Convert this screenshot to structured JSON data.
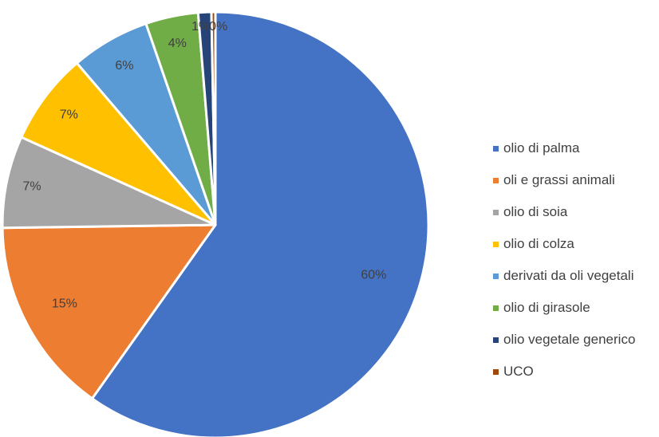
{
  "chart_data": {
    "type": "pie",
    "title": "",
    "legend_position": "right",
    "slices": [
      {
        "label": "olio di palma",
        "value": 60,
        "value_label": "60%",
        "color": "#4472C4"
      },
      {
        "label": "oli e grassi animali",
        "value": 15,
        "value_label": "15%",
        "color": "#ED7D31"
      },
      {
        "label": "olio di soia",
        "value": 7,
        "value_label": "7%",
        "color": "#A5A5A5"
      },
      {
        "label": "olio di colza",
        "value": 7,
        "value_label": "7%",
        "color": "#FFC000"
      },
      {
        "label": "derivati da oli vegetali",
        "value": 6,
        "value_label": "6%",
        "color": "#5B9BD5"
      },
      {
        "label": "olio di girasole",
        "value": 4,
        "value_label": "4%",
        "color": "#70AD47"
      },
      {
        "label": "olio vegetale generico",
        "value": 1,
        "value_label": "1%",
        "color": "#264478"
      },
      {
        "label": "UCO",
        "value": 0.3,
        "value_label": "0%",
        "color": "#9E480E"
      }
    ]
  }
}
